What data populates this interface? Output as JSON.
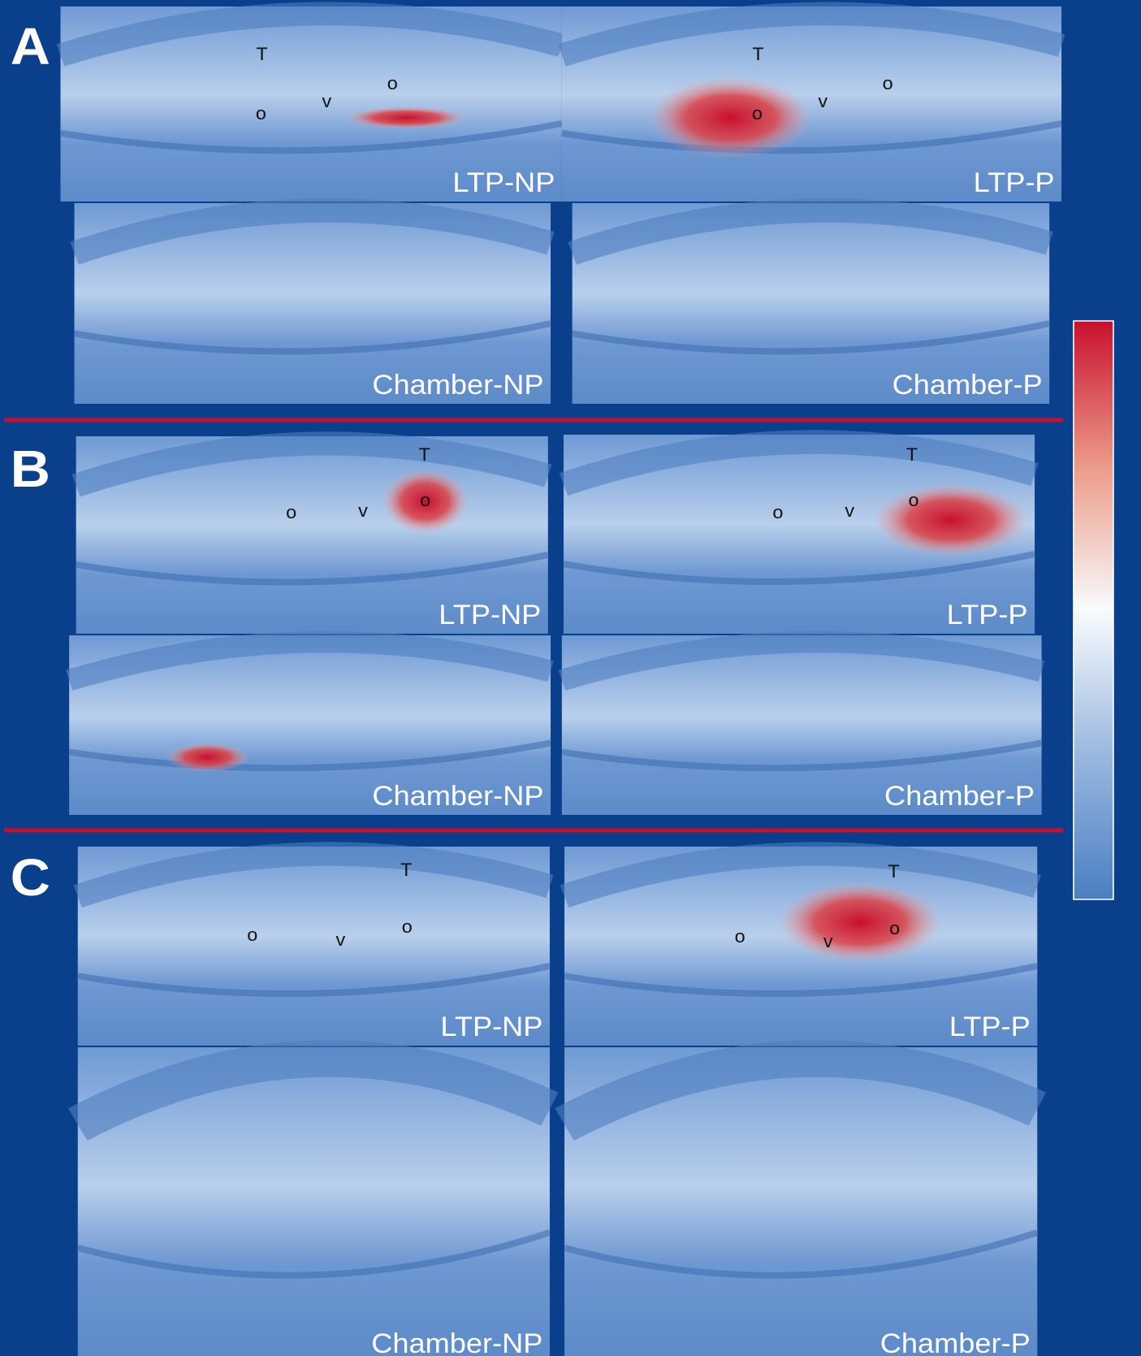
{
  "figure": {
    "panels": [
      {
        "letter": "A",
        "images": [
          {
            "label": "LTP-NP",
            "markers": [
              "T",
              "o",
              "v",
              "o"
            ]
          },
          {
            "label": "LTP-P",
            "markers": [
              "T",
              "o",
              "v",
              "o"
            ]
          },
          {
            "label": "Chamber-NP"
          },
          {
            "label": "Chamber-P"
          }
        ]
      },
      {
        "letter": "B",
        "images": [
          {
            "label": "LTP-NP",
            "markers": [
              "T",
              "o",
              "v",
              "o"
            ]
          },
          {
            "label": "LTP-P",
            "markers": [
              "T",
              "o",
              "v",
              "o"
            ]
          },
          {
            "label": "Chamber-NP"
          },
          {
            "label": "Chamber-P"
          }
        ]
      },
      {
        "letter": "C",
        "images": [
          {
            "label": "LTP-NP",
            "markers": [
              "T",
              "o",
              "v",
              "o"
            ]
          },
          {
            "label": "LTP-P",
            "markers": [
              "T",
              "o",
              "v",
              "o"
            ]
          },
          {
            "label": "Chamber-NP"
          },
          {
            "label": "Chamber-P"
          }
        ]
      }
    ]
  }
}
